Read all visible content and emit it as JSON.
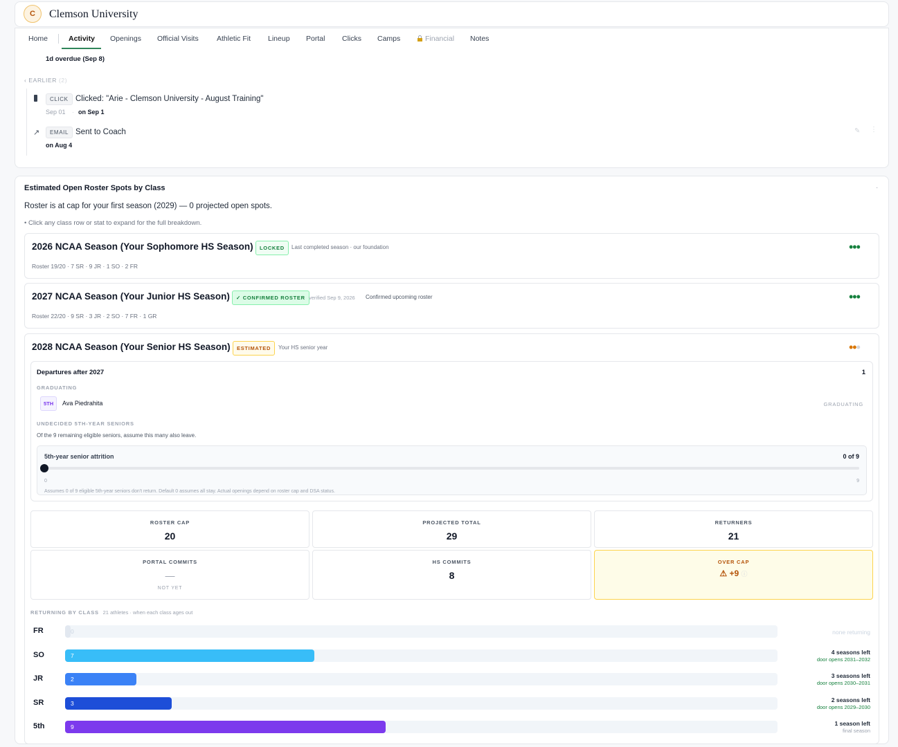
{
  "header": {
    "logo_letter": "C",
    "title": "Clemson University"
  },
  "tabs": [
    "Home",
    "Activity",
    "Openings",
    "Official Visits",
    "Athletic Fit",
    "Lineup",
    "Portal",
    "Clicks",
    "Camps",
    "Financial",
    "Notes"
  ],
  "activity": {
    "overdue": "1d overdue (Sep 8)",
    "earlier_label": "EARLIER",
    "earlier_count": "(2)",
    "items": [
      {
        "tag": "CLICK",
        "text": "Clicked: \"Arie - Clemson University - August Training\"",
        "date": "Sep 01",
        "when": "on Sep 1"
      },
      {
        "tag": "EMAIL",
        "text": "Sent to Coach",
        "when": "on Aug 4"
      }
    ]
  },
  "roster": {
    "title": "Estimated Open Roster Spots by Class",
    "summary": "Roster is at cap for your first season (2029) — 0 projected open spots.",
    "hint": "Click any class row or stat to expand for the full breakdown.",
    "seasons": [
      {
        "title": "2026 NCAA Season (Your Sophomore HS Season)",
        "badge": "LOCKED",
        "note": "Last completed season · our foundation",
        "detail": "Roster 19/20 · 7 SR · 9 JR · 1 SO · 2 FR"
      },
      {
        "title": "2027 NCAA Season (Your Junior HS Season)",
        "badge": "✓ CONFIRMED ROSTER",
        "verified": "verified Sep 9, 2026",
        "note": "Confirmed upcoming roster",
        "detail": "Roster 22/20 · 9 SR · 3 JR · 2 SO · 7 FR · 1 GR"
      },
      {
        "title": "2028 NCAA Season (Your Senior HS Season)",
        "badge": "ESTIMATED",
        "note": "Your HS senior year"
      }
    ],
    "departures": {
      "title": "Departures after 2027",
      "count": 1,
      "graduating_label": "GRADUATING",
      "athletes": [
        {
          "tag": "5TH",
          "name": "Ava Piedrahita",
          "status": "GRADUATING"
        }
      ],
      "undecided_label": "UNDECIDED 5TH-YEAR SENIORS",
      "undecided_text": "Of the 9 remaining eligible seniors, assume this many also leave.",
      "slider": {
        "label": "5th-year senior attrition",
        "value_label": "0 of 9",
        "min": 0,
        "max": 9,
        "value": 0
      },
      "slider_note": "Assumes 0 of 9 eligible 5th-year seniors don't return. Default 0 assumes all stay. Actual openings depend on roster cap and DSA status."
    },
    "stats": [
      {
        "label": "ROSTER CAP",
        "value": 20
      },
      {
        "label": "PROJECTED TOTAL",
        "value": 29
      },
      {
        "label": "RETURNERS",
        "value": 21
      },
      {
        "label": "PORTAL COMMITS",
        "value": "—",
        "sub": "NOT YET"
      },
      {
        "label": "HS COMMITS",
        "value": 8
      },
      {
        "label": "OVER CAP",
        "value": "+9"
      }
    ],
    "returning": {
      "label": "RETURNING BY CLASS",
      "note": "21 athletes · when each class ages out",
      "rows": [
        {
          "class": "FR",
          "count": 0,
          "seasons": "none returning",
          "color": "#e2e8f0"
        },
        {
          "class": "SO",
          "count": 7,
          "seasons": "4 seasons left",
          "door": "door opens 2031–2032",
          "color": "#38bdf8"
        },
        {
          "class": "JR",
          "count": 2,
          "seasons": "3 seasons left",
          "door": "door opens 2030–2031",
          "color": "#3b82f6"
        },
        {
          "class": "SR",
          "count": 3,
          "seasons": "2 seasons left",
          "door": "door opens 2029–2030",
          "color": "#1d4ed8"
        },
        {
          "class": "5th",
          "count": 9,
          "seasons": "1 season left",
          "door": "final season",
          "color": "#7c3aed"
        }
      ]
    }
  }
}
